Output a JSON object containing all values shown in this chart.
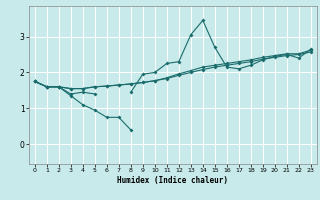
{
  "xlabel": "Humidex (Indice chaleur)",
  "background_color": "#c8eaea",
  "grid_color": "#ffffff",
  "line_color": "#1a6b6b",
  "xlim": [
    -0.5,
    23.5
  ],
  "ylim": [
    -0.55,
    3.85
  ],
  "xticks": [
    0,
    1,
    2,
    3,
    4,
    5,
    6,
    7,
    8,
    9,
    10,
    11,
    12,
    13,
    14,
    15,
    16,
    17,
    18,
    19,
    20,
    21,
    22,
    23
  ],
  "yticks": [
    0,
    1,
    2,
    3
  ],
  "x": [
    0,
    1,
    2,
    3,
    4,
    5,
    6,
    7,
    8,
    9,
    10,
    11,
    12,
    13,
    14,
    15,
    16,
    17,
    18,
    19,
    20,
    21,
    22,
    23
  ],
  "line1": [
    1.75,
    1.6,
    1.6,
    1.35,
    1.1,
    0.95,
    0.75,
    0.75,
    0.4,
    null,
    null,
    null,
    null,
    null,
    null,
    null,
    null,
    null,
    null,
    null,
    null,
    null,
    null,
    null
  ],
  "line2": [
    1.75,
    1.6,
    1.6,
    1.4,
    1.45,
    1.4,
    null,
    null,
    1.45,
    1.95,
    2.0,
    2.25,
    2.3,
    3.05,
    3.45,
    2.7,
    2.15,
    2.1,
    2.2,
    2.35,
    2.45,
    2.5,
    2.4,
    2.65
  ],
  "line3": [
    1.75,
    1.6,
    1.6,
    1.55,
    1.55,
    1.6,
    1.62,
    1.65,
    1.68,
    1.72,
    1.77,
    1.83,
    1.92,
    2.0,
    2.08,
    2.15,
    2.2,
    2.25,
    2.3,
    2.37,
    2.42,
    2.47,
    2.5,
    2.57
  ],
  "line4": [
    1.75,
    1.6,
    1.6,
    1.55,
    1.55,
    1.6,
    1.62,
    1.65,
    1.68,
    1.72,
    1.77,
    1.85,
    1.96,
    2.05,
    2.15,
    2.2,
    2.25,
    2.3,
    2.35,
    2.42,
    2.47,
    2.52,
    2.52,
    2.62
  ]
}
